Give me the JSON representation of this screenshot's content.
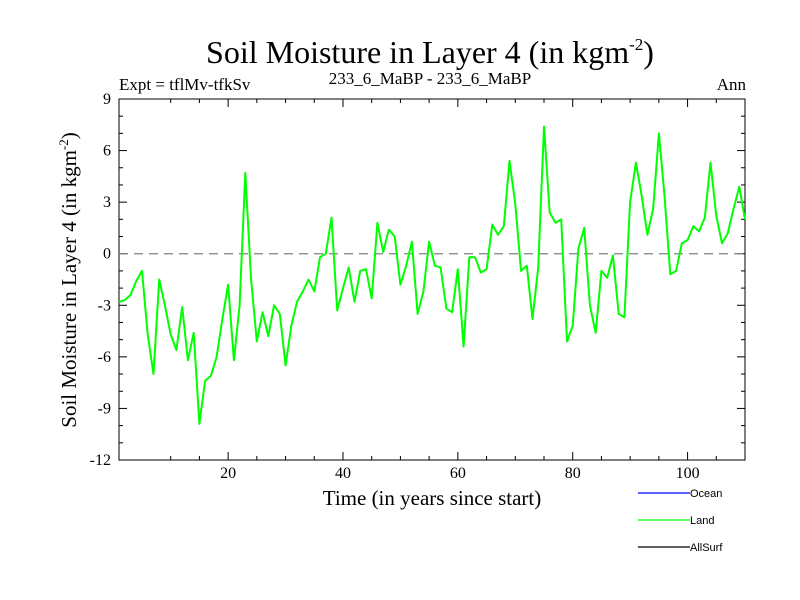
{
  "header": {
    "title_main": "Soil Moisture in Layer 4 (in kgm",
    "title_exp": "-2",
    "title_close": ")",
    "left_label": "Expt = tflMv-tfkSv",
    "center_label": "233_6_MaBP - 233_6_MaBP",
    "right_label": "Ann"
  },
  "colors": {
    "ocean": "#0000ff",
    "land": "#00ff00",
    "allsurf": "#000000",
    "zero_line": "#808080"
  },
  "chart_data": {
    "type": "line",
    "title": "Soil Moisture in Layer 4 (in kgm-2)",
    "xlabel": "Time (in years since start)",
    "ylabel_main": "Soil Moisture in Layer 4 (in kgm",
    "ylabel_exp": "-2",
    "ylabel_close": ")",
    "xlim": [
      1,
      110
    ],
    "ylim": [
      -12,
      9
    ],
    "xticks": [
      20,
      40,
      60,
      80,
      100
    ],
    "yticks": [
      9,
      6,
      3,
      0,
      -3,
      -6,
      -9,
      -12
    ],
    "zero_line": 0,
    "legend": [
      "Ocean",
      "Land",
      "AllSurf"
    ],
    "series": [
      {
        "name": "Land",
        "color": "#00ff00",
        "x": [
          1,
          2,
          3,
          4,
          5,
          6,
          7,
          8,
          9,
          10,
          11,
          12,
          13,
          14,
          15,
          16,
          17,
          18,
          19,
          20,
          21,
          22,
          23,
          24,
          25,
          26,
          27,
          28,
          29,
          30,
          31,
          32,
          33,
          34,
          35,
          36,
          37,
          38,
          39,
          40,
          41,
          42,
          43,
          44,
          45,
          46,
          47,
          48,
          49,
          50,
          51,
          52,
          53,
          54,
          55,
          56,
          57,
          58,
          59,
          60,
          61,
          62,
          63,
          64,
          65,
          66,
          67,
          68,
          69,
          70,
          71,
          72,
          73,
          74,
          75,
          76,
          77,
          78,
          79,
          80,
          81,
          82,
          83,
          84,
          85,
          86,
          87,
          88,
          89,
          90,
          91,
          92,
          93,
          94,
          95,
          96,
          97,
          98,
          99,
          100,
          101,
          102,
          103,
          104,
          105,
          106,
          107,
          108,
          109,
          110
        ],
        "values": [
          -2.8,
          -2.7,
          -2.4,
          -1.6,
          -1.0,
          -4.7,
          -7.0,
          -1.5,
          -3.0,
          -4.7,
          -5.6,
          -3.1,
          -6.2,
          -4.6,
          -9.9,
          -7.4,
          -7.1,
          -6.0,
          -3.8,
          -1.8,
          -6.2,
          -3.0,
          4.7,
          -1.5,
          -5.1,
          -3.4,
          -4.8,
          -3.0,
          -3.5,
          -6.5,
          -4.2,
          -2.8,
          -2.2,
          -1.5,
          -2.2,
          -0.2,
          0.0,
          2.1,
          -3.3,
          -2.0,
          -0.8,
          -2.8,
          -1.0,
          -0.9,
          -2.6,
          1.8,
          0.1,
          1.4,
          1.0,
          -1.8,
          -0.7,
          0.7,
          -3.5,
          -2.2,
          0.7,
          -0.7,
          -0.8,
          -3.2,
          -3.4,
          -0.9,
          -5.4,
          -0.2,
          -0.2,
          -1.1,
          -0.9,
          1.7,
          1.1,
          1.6,
          5.4,
          2.9,
          -1.0,
          -0.7,
          -3.8,
          -0.8,
          7.4,
          2.4,
          1.8,
          2.0,
          -5.1,
          -4.2,
          0.3,
          1.5,
          -3.0,
          -4.6,
          -1.0,
          -1.4,
          -0.1,
          -3.5,
          -3.7,
          3.0,
          5.3,
          3.4,
          1.1,
          2.6,
          7.0,
          3.3,
          -1.2,
          -1.0,
          0.6,
          0.8,
          1.6,
          1.3,
          2.1,
          5.3,
          2.2,
          0.6,
          1.2,
          2.6,
          3.9,
          2.0
        ]
      }
    ]
  }
}
